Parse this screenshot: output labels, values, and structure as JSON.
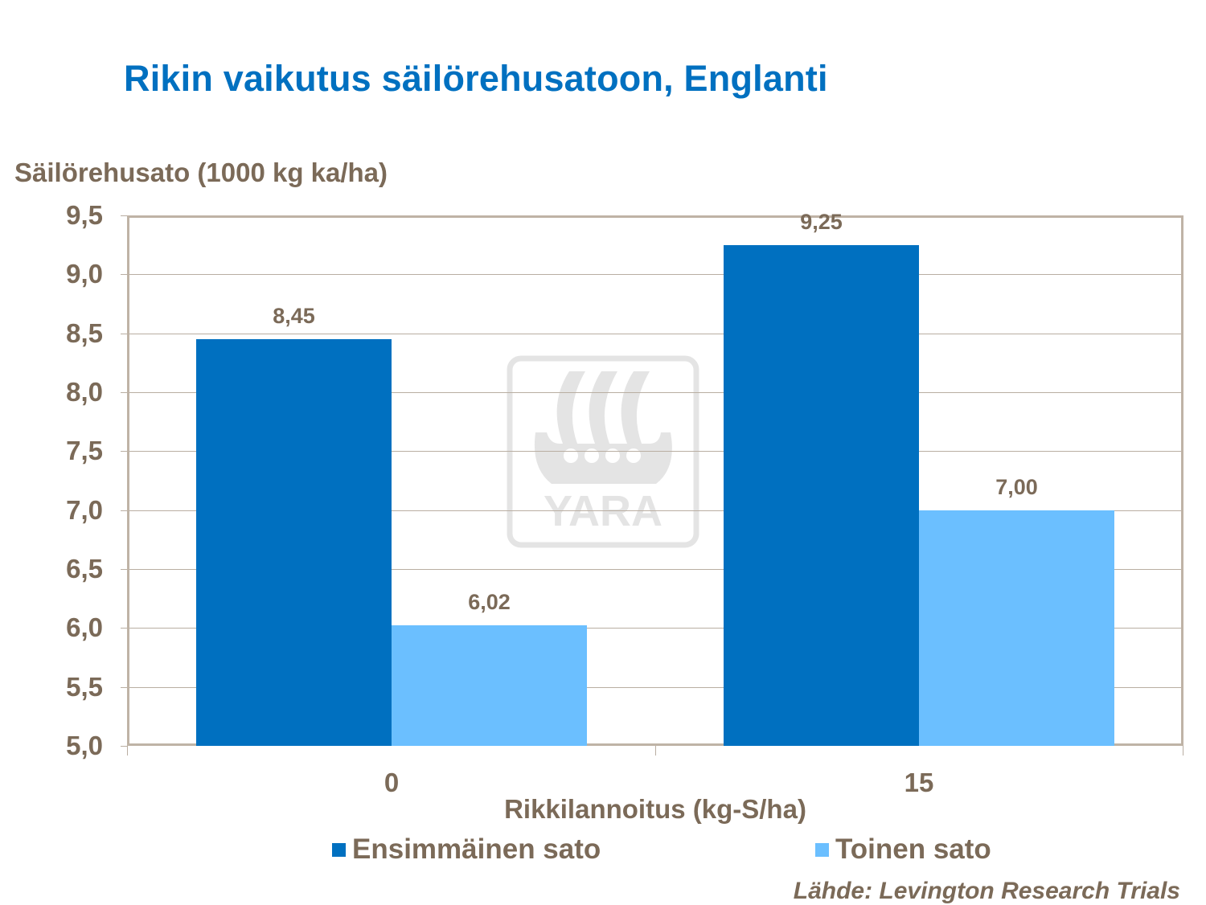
{
  "title": "Rikin vaikutus säilörehusatoon, Englanti",
  "watermark": "YARA",
  "source": "Lähde: Levington Research Trials",
  "colors": {
    "series1": "#0070c0",
    "series2": "#6bbfff",
    "text": "#7b6a58",
    "title": "#0070c0",
    "grid": "#b9aea2"
  },
  "chart_data": {
    "type": "bar",
    "title": "Rikin vaikutus säilörehusatoon, Englanti",
    "xlabel": "Rikkilannoitus (kg-S/ha)",
    "ylabel": "Säilörehusato (1000 kg ka/ha)",
    "categories": [
      "0",
      "15"
    ],
    "series": [
      {
        "name": "Ensimmäinen sato",
        "values": [
          8.45,
          9.25
        ],
        "labels": [
          "8,45",
          "9,25"
        ],
        "color": "#0070c0"
      },
      {
        "name": "Toinen sato",
        "values": [
          6.02,
          7.0
        ],
        "labels": [
          "6,02",
          "7,00"
        ],
        "color": "#6bbfff"
      }
    ],
    "ylim": [
      5.0,
      9.5
    ],
    "yticks": [
      "5,0",
      "5,5",
      "6,0",
      "6,5",
      "7,0",
      "7,5",
      "8,0",
      "8,5",
      "9,0",
      "9,5"
    ],
    "grid": true,
    "legend_position": "bottom"
  }
}
